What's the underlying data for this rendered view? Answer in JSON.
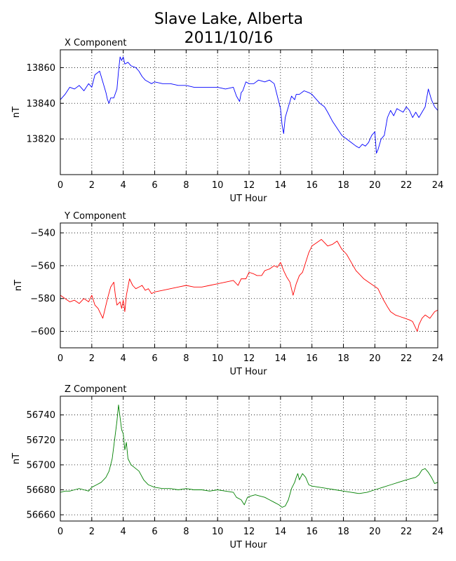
{
  "figure": {
    "title_line1": "Slave Lake, Alberta",
    "title_line2": "2011/10/16"
  },
  "chart_data": [
    {
      "type": "line",
      "title": "X Component",
      "xlabel": "UT Hour",
      "ylabel": "nT",
      "xlim": [
        0,
        24
      ],
      "ylim": [
        13800,
        13870
      ],
      "xticks": [
        0,
        2,
        4,
        6,
        8,
        10,
        12,
        14,
        16,
        18,
        20,
        22,
        24
      ],
      "yticks": [
        13820,
        13840,
        13860
      ],
      "grid": true,
      "color": "#0000ff",
      "series": [
        {
          "x": [
            0,
            0.3,
            0.6,
            0.9,
            1.2,
            1.5,
            1.8,
            2.0,
            2.2,
            2.5,
            2.7,
            2.9,
            3.0,
            3.1,
            3.2,
            3.4,
            3.6,
            3.7,
            3.8,
            3.9,
            4.0,
            4.1,
            4.3,
            4.5,
            4.8,
            5.0,
            5.2,
            5.4,
            5.6,
            5.8,
            6.0,
            6.5,
            7.0,
            7.5,
            8.0,
            8.5,
            9.0,
            9.5,
            10.0,
            10.5,
            11.0,
            11.2,
            11.4,
            11.5,
            11.6,
            11.8,
            12.0,
            12.3,
            12.6,
            13.0,
            13.3,
            13.6,
            13.8,
            14.0,
            14.1,
            14.2,
            14.3,
            14.5,
            14.7,
            14.9,
            15.0,
            15.2,
            15.5,
            15.8,
            16.0,
            16.2,
            16.5,
            16.8,
            17.0,
            17.3,
            17.6,
            17.9,
            18.2,
            18.5,
            18.8,
            19.0,
            19.2,
            19.4,
            19.6,
            19.8,
            20.0,
            20.1,
            20.2,
            20.4,
            20.6,
            20.8,
            21.0,
            21.2,
            21.4,
            21.6,
            21.8,
            22.0,
            22.2,
            22.4,
            22.6,
            22.8,
            23.0,
            23.2,
            23.4,
            23.6,
            23.8,
            24.0
          ],
          "y": [
            13842,
            13845,
            13849,
            13848,
            13850,
            13847,
            13851,
            13849,
            13856,
            13858,
            13852,
            13846,
            13842,
            13840,
            13843,
            13843,
            13848,
            13858,
            13866,
            13864,
            13866,
            13862,
            13863,
            13861,
            13860,
            13858,
            13855,
            13853,
            13852,
            13851,
            13852,
            13851,
            13851,
            13850,
            13850,
            13849,
            13849,
            13849,
            13849,
            13848,
            13849,
            13844,
            13841,
            13846,
            13847,
            13852,
            13851,
            13851,
            13853,
            13852,
            13853,
            13851,
            13844,
            13837,
            13828,
            13823,
            13832,
            13838,
            13844,
            13842,
            13845,
            13845,
            13847,
            13846,
            13845,
            13843,
            13840,
            13838,
            13835,
            13830,
            13826,
            13822,
            13820,
            13818,
            13816,
            13815,
            13817,
            13816,
            13818,
            13822,
            13824,
            13812,
            13814,
            13820,
            13822,
            13832,
            13836,
            13833,
            13837,
            13836,
            13835,
            13838,
            13836,
            13832,
            13835,
            13832,
            13835,
            13838,
            13848,
            13842,
            13838,
            13836
          ]
        }
      ]
    },
    {
      "type": "line",
      "title": "Y Component",
      "xlabel": "UT Hour",
      "ylabel": "nT",
      "xlim": [
        0,
        24
      ],
      "ylim": [
        -610,
        -534
      ],
      "xticks": [
        0,
        2,
        4,
        6,
        8,
        10,
        12,
        14,
        16,
        18,
        20,
        22,
        24
      ],
      "yticks": [
        -600,
        -580,
        -560,
        -540
      ],
      "grid": true,
      "color": "#ff0000",
      "series": [
        {
          "x": [
            0,
            0.3,
            0.6,
            0.9,
            1.2,
            1.5,
            1.8,
            2.0,
            2.2,
            2.4,
            2.6,
            2.7,
            2.8,
            3.0,
            3.2,
            3.4,
            3.5,
            3.6,
            3.8,
            3.9,
            4.0,
            4.1,
            4.2,
            4.4,
            4.6,
            4.8,
            5.0,
            5.2,
            5.4,
            5.6,
            5.8,
            6.0,
            6.5,
            7.0,
            7.5,
            8.0,
            8.5,
            9.0,
            9.5,
            10.0,
            10.5,
            11.0,
            11.3,
            11.5,
            11.8,
            12.0,
            12.3,
            12.5,
            12.8,
            13.0,
            13.3,
            13.6,
            13.8,
            14.0,
            14.2,
            14.4,
            14.6,
            14.8,
            15.0,
            15.2,
            15.4,
            15.6,
            15.8,
            16.0,
            16.3,
            16.6,
            16.8,
            17.0,
            17.3,
            17.6,
            17.9,
            18.2,
            18.5,
            18.8,
            19.0,
            19.3,
            19.6,
            19.9,
            20.2,
            20.5,
            20.8,
            21.0,
            21.3,
            21.6,
            21.9,
            22.2,
            22.4,
            22.6,
            22.7,
            22.8,
            23.0,
            23.2,
            23.5,
            23.8,
            24.0
          ],
          "y": [
            -578,
            -580,
            -582,
            -581,
            -583,
            -580,
            -582,
            -578,
            -584,
            -586,
            -590,
            -592,
            -588,
            -580,
            -573,
            -570,
            -578,
            -584,
            -582,
            -586,
            -581,
            -588,
            -578,
            -568,
            -572,
            -574,
            -573,
            -572,
            -575,
            -574,
            -577,
            -576,
            -575,
            -574,
            -573,
            -572,
            -573,
            -573,
            -572,
            -571,
            -570,
            -569,
            -572,
            -568,
            -568,
            -564,
            -565,
            -566,
            -566,
            -563,
            -562,
            -560,
            -561,
            -558,
            -563,
            -567,
            -570,
            -578,
            -571,
            -566,
            -564,
            -558,
            -552,
            -548,
            -546,
            -544,
            -546,
            -548,
            -547,
            -545,
            -550,
            -553,
            -558,
            -563,
            -565,
            -568,
            -570,
            -572,
            -574,
            -580,
            -585,
            -588,
            -590,
            -591,
            -592,
            -593,
            -594,
            -598,
            -600,
            -596,
            -592,
            -590,
            -592,
            -588,
            -587
          ]
        }
      ]
    },
    {
      "type": "line",
      "title": "Z Component",
      "xlabel": "UT Hour",
      "ylabel": "nT",
      "xlim": [
        0,
        24
      ],
      "ylim": [
        56655,
        56755
      ],
      "xticks": [
        0,
        2,
        4,
        6,
        8,
        10,
        12,
        14,
        16,
        18,
        20,
        22,
        24
      ],
      "yticks": [
        56660,
        56680,
        56700,
        56720,
        56740
      ],
      "grid": true,
      "color": "#008000",
      "series": [
        {
          "x": [
            0,
            0.3,
            0.6,
            0.9,
            1.2,
            1.5,
            1.8,
            2.0,
            2.3,
            2.6,
            2.9,
            3.1,
            3.3,
            3.5,
            3.6,
            3.7,
            3.8,
            3.9,
            4.0,
            4.1,
            4.2,
            4.3,
            4.5,
            4.7,
            5.0,
            5.3,
            5.6,
            6.0,
            6.5,
            7.0,
            7.5,
            8.0,
            8.5,
            9.0,
            9.5,
            10.0,
            10.5,
            11.0,
            11.2,
            11.5,
            11.7,
            11.9,
            12.1,
            12.4,
            12.7,
            13.0,
            13.3,
            13.6,
            13.9,
            14.1,
            14.3,
            14.5,
            14.7,
            14.9,
            15.0,
            15.1,
            15.2,
            15.4,
            15.6,
            15.8,
            16.0,
            16.5,
            17.0,
            17.5,
            18.0,
            18.5,
            19.0,
            19.5,
            20.0,
            20.5,
            21.0,
            21.5,
            22.0,
            22.3,
            22.6,
            22.8,
            23.0,
            23.2,
            23.4,
            23.6,
            23.8,
            24.0
          ],
          "y": [
            56678,
            56679,
            56679,
            56680,
            56681,
            56680,
            56679,
            56682,
            56684,
            56686,
            56690,
            56695,
            56705,
            56725,
            56735,
            56748,
            56738,
            56728,
            56725,
            56712,
            56718,
            56705,
            56700,
            56698,
            56695,
            56688,
            56684,
            56682,
            56681,
            56681,
            56680,
            56681,
            56680,
            56680,
            56679,
            56680,
            56679,
            56678,
            56674,
            56672,
            56668,
            56674,
            56675,
            56676,
            56675,
            56674,
            56672,
            56670,
            56668,
            56666,
            56667,
            56672,
            56681,
            56686,
            56690,
            56693,
            56688,
            56693,
            56690,
            56684,
            56683,
            56682,
            56681,
            56680,
            56679,
            56678,
            56677,
            56678,
            56680,
            56682,
            56684,
            56686,
            56688,
            56689,
            56690,
            56692,
            56696,
            56697,
            56694,
            56690,
            56685,
            56686
          ]
        }
      ]
    }
  ]
}
